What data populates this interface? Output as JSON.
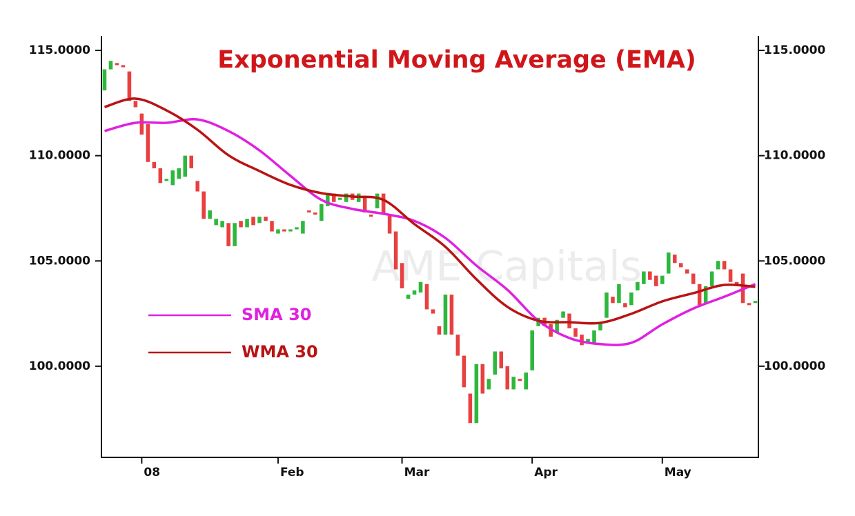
{
  "chart_data": {
    "type": "candlestick",
    "title": "Exponential Moving Average (EMA)",
    "watermark": "AME Capitals",
    "title_color": "#d0161a",
    "up_color": "#2db83d",
    "down_color": "#e84040",
    "xlim": [
      -0.5,
      105.5
    ],
    "xticks": [
      {
        "value": 6,
        "label": "08"
      },
      {
        "value": 28,
        "label": "Feb"
      },
      {
        "value": 48,
        "label": "Mar"
      },
      {
        "value": 69,
        "label": "Apr"
      },
      {
        "value": 90,
        "label": "May"
      }
    ],
    "ylim": [
      95.67,
      115.69
    ],
    "yticks": [
      {
        "value": 100,
        "label": "100.0000"
      },
      {
        "value": 105,
        "label": "105.0000"
      },
      {
        "value": 110,
        "label": "110.0000"
      },
      {
        "value": 115,
        "label": "115.0000"
      }
    ],
    "y2lim": [
      95.67,
      115.69
    ],
    "y2ticks": [
      {
        "value": 100,
        "label": "100.0000"
      },
      {
        "value": 105,
        "label": "105.0000"
      },
      {
        "value": 110,
        "label": "110.0000"
      },
      {
        "value": 115,
        "label": "115.0000"
      }
    ],
    "open": [
      113.1,
      114.1,
      114.4,
      114.3,
      114.0,
      112.6,
      112.0,
      111.5,
      109.7,
      109.4,
      108.8,
      108.6,
      108.9,
      109.0,
      110.0,
      108.8,
      108.3,
      107.0,
      106.7,
      106.6,
      106.8,
      105.7,
      106.9,
      106.6,
      107.1,
      106.8,
      107.1,
      106.9,
      106.3,
      106.5,
      106.4,
      106.5,
      106.3,
      107.4,
      107.3,
      106.9,
      107.6,
      108.2,
      107.9,
      107.8,
      108.2,
      107.8,
      108.1,
      107.2,
      107.5,
      108.2,
      107.2,
      106.4,
      104.9,
      103.2,
      103.4,
      103.5,
      103.9,
      102.7,
      101.9,
      101.5,
      103.4,
      101.5,
      100.5,
      98.7,
      97.3,
      100.1,
      98.9,
      99.6,
      100.7,
      100.0,
      98.9,
      99.4,
      98.9,
      99.8,
      101.9,
      102.3,
      102.0,
      101.6,
      102.3,
      102.5,
      101.8,
      101.5,
      101.1,
      101.1,
      101.7,
      102.3,
      103.3,
      103.0,
      103.0,
      102.9,
      103.6,
      103.9,
      104.5,
      104.3,
      103.9,
      104.4,
      105.3,
      104.9,
      104.6,
      104.4,
      103.9,
      103.0,
      103.8,
      104.6,
      105.0,
      104.6,
      104.0,
      104.4,
      103.0,
      103.0
    ],
    "close": [
      114.1,
      114.5,
      114.3,
      114.2,
      112.6,
      112.3,
      111.0,
      109.7,
      109.4,
      108.7,
      108.9,
      109.3,
      109.4,
      110.0,
      109.4,
      108.3,
      107.0,
      107.4,
      107.0,
      106.9,
      105.7,
      106.8,
      106.6,
      107.0,
      106.7,
      107.1,
      106.9,
      106.4,
      106.5,
      106.4,
      106.5,
      106.6,
      106.9,
      107.3,
      107.2,
      107.7,
      108.2,
      107.8,
      108.0,
      108.2,
      107.9,
      108.2,
      107.3,
      107.1,
      108.2,
      107.2,
      106.3,
      104.6,
      103.7,
      103.4,
      103.6,
      104.0,
      102.7,
      102.5,
      101.5,
      103.4,
      101.5,
      100.5,
      99.0,
      97.3,
      100.1,
      98.7,
      99.4,
      100.7,
      99.9,
      98.9,
      99.5,
      99.3,
      99.7,
      101.7,
      102.3,
      101.9,
      101.4,
      102.2,
      102.6,
      101.8,
      101.4,
      101.0,
      101.3,
      101.7,
      102.1,
      103.5,
      103.0,
      103.9,
      102.8,
      103.5,
      104.0,
      104.5,
      104.1,
      103.8,
      104.3,
      105.4,
      104.9,
      104.7,
      104.4,
      103.9,
      102.9,
      103.8,
      104.5,
      105.0,
      104.6,
      104.0,
      103.8,
      103.0,
      102.9,
      103.1
    ],
    "series": [
      {
        "name": "SMA 30",
        "color": "#e020e0",
        "x": [
          0,
          5,
          10,
          15,
          20,
          25,
          30,
          35,
          40,
          45,
          50,
          55,
          60,
          65,
          70,
          75,
          80,
          85,
          90,
          95,
          100,
          105
        ],
        "values": [
          111.17,
          111.56,
          111.56,
          111.72,
          111.17,
          110.25,
          109.04,
          107.9,
          107.47,
          107.24,
          106.9,
          106.09,
          104.78,
          103.63,
          102.16,
          101.34,
          101.05,
          101.11,
          101.99,
          102.74,
          103.3,
          103.9
        ]
      },
      {
        "name": "WMA 30",
        "color": "#b81414",
        "x": [
          0,
          5,
          10,
          15,
          20,
          25,
          30,
          35,
          40,
          45,
          50,
          55,
          60,
          65,
          70,
          75,
          80,
          85,
          90,
          95,
          100,
          105
        ],
        "values": [
          112.31,
          112.71,
          112.15,
          111.23,
          110.02,
          109.27,
          108.61,
          108.22,
          108.06,
          107.9,
          106.75,
          105.67,
          104.13,
          102.82,
          102.16,
          102.09,
          102.06,
          102.49,
          103.08,
          103.47,
          103.86,
          103.77
        ]
      }
    ]
  }
}
